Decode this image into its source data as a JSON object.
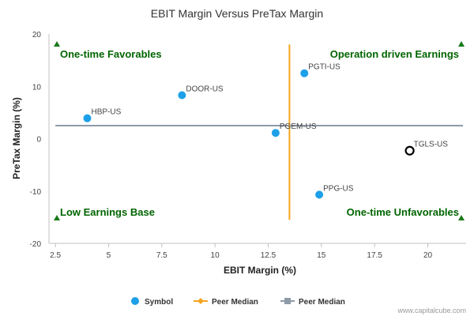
{
  "chart_data": {
    "type": "scatter",
    "title": "EBIT Margin Versus PreTax Margin",
    "xlabel": "EBIT Margin (%)",
    "ylabel": "PreTax Margin (%)",
    "xlim": [
      2.2,
      21.8
    ],
    "ylim": [
      -20,
      20
    ],
    "x_ticks": [
      "2.5",
      "5",
      "7.5",
      "10",
      "12.5",
      "15",
      "17.5",
      "20"
    ],
    "y_ticks": [
      "20",
      "10",
      "0",
      "-10",
      "-20"
    ],
    "grid": false,
    "legend_position": "bottom",
    "points": [
      {
        "label": "DOOR-US",
        "x": 8.45,
        "y": 8.3
      },
      {
        "label": "PGTI-US",
        "x": 14.2,
        "y": 12.5
      },
      {
        "label": "HBP-US",
        "x": 4.0,
        "y": 3.9
      },
      {
        "label": "PGEM-US",
        "x": 12.85,
        "y": 1.1
      },
      {
        "label": "PPG-US",
        "x": 14.9,
        "y": -10.7
      }
    ],
    "highlight": {
      "label": "TGLS-US",
      "x": 19.15,
      "y": -2.3
    },
    "peer_median_x": 13.5,
    "peer_median_y": 2.5,
    "quadrant_labels": {
      "top_left": "One-time Favorables",
      "top_right": "Operation driven Earnings",
      "bottom_left": "Low Earnings Base",
      "bottom_right": "One-time Unfavorables"
    },
    "legend": [
      {
        "label": "Symbol",
        "color": "#1ea0e8",
        "marker": "circle"
      },
      {
        "label": "Peer Median",
        "color": "#f5a623",
        "marker": "diamond-line"
      },
      {
        "label": "Peer Median",
        "color": "#8e9aa8",
        "marker": "square-line"
      }
    ],
    "colors": {
      "point": "#1ea0e8",
      "highlight": "#000000",
      "median_x_line": "#f5a623",
      "median_y_line": "#8e9aa8",
      "quadrant_text": "#006400",
      "triangle": "#1a7a1a"
    }
  },
  "footer": {
    "credit": "www.capitalcube.com"
  }
}
